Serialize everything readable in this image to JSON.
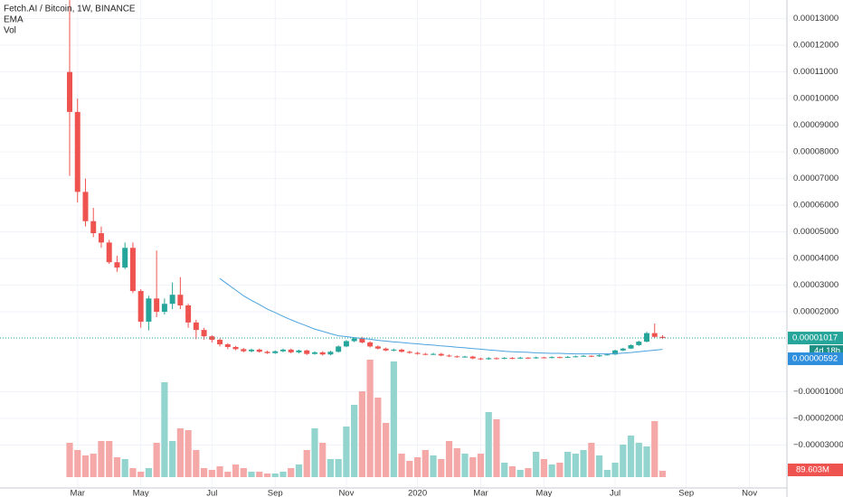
{
  "chart_data": {
    "type": "candlestick",
    "title": "Fetch.AI / Bitcoin, 1W, BINANCE",
    "categories": [
      null,
      "Mar",
      null,
      null,
      null,
      null,
      null,
      null,
      null,
      "May",
      null,
      null,
      null,
      null,
      null,
      null,
      null,
      null,
      "Jul",
      null,
      null,
      null,
      null,
      null,
      null,
      null,
      "Sep",
      null,
      null,
      null,
      null,
      null,
      null,
      null,
      null,
      "Nov",
      null,
      null,
      null,
      null,
      null,
      null,
      null,
      null,
      "2020",
      null,
      null,
      null,
      null,
      null,
      null,
      null,
      "Mar",
      null,
      null,
      null,
      null,
      null,
      null,
      null,
      "May",
      null,
      null,
      null,
      null,
      null,
      null,
      null,
      null,
      "Jul",
      null,
      null,
      null,
      null,
      null,
      null,
      null,
      null,
      "Sep",
      null,
      null,
      null,
      null,
      null,
      null,
      null,
      "Nov",
      null,
      null,
      null,
      null
    ],
    "open": [
      0.00011,
      9.5e-05,
      6.5e-05,
      5.4e-05,
      4.95e-05,
      4.6e-05,
      3.86e-05,
      3.66e-05,
      4.4e-05,
      2.78e-05,
      1.63e-05,
      2.5e-05,
      2e-05,
      2.3e-05,
      2.64e-05,
      2.24e-05,
      1.6e-05,
      1.32e-05,
      1.08e-05,
      9.5e-06,
      7.8e-06,
      6.8e-06,
      6e-06,
      5.2e-06,
      5.8e-06,
      5e-06,
      4.5e-06,
      5.2e-06,
      5.8e-06,
      4.8e-06,
      5.5e-06,
      4.2e-06,
      4.8e-06,
      4e-06,
      5e-06,
      7e-06,
      9e-06,
      1e-05,
      8.5e-06,
      7e-06,
      6.2e-06,
      5.5e-06,
      5.8e-06,
      5e-06,
      4.6e-06,
      4.2e-06,
      4e-06,
      4.2e-06,
      3.6e-06,
      3.3e-06,
      3e-06,
      3.2e-06,
      2.5e-06,
      2.2e-06,
      2.6e-06,
      2.4e-06,
      2.7e-06,
      2.5e-06,
      2.8e-06,
      2.6e-06,
      2.9e-06,
      2.7e-06,
      3e-06,
      2.8e-06,
      3.1e-06,
      3.3e-06,
      3.5e-06,
      3.3e-06,
      3.7e-06,
      4e-06,
      5.5e-06,
      6.2e-06,
      7.5e-06,
      8.8e-06,
      1.2e-05,
      1.06e-05,
      null,
      null,
      null,
      null,
      null,
      null,
      null,
      null,
      null,
      null,
      null,
      null,
      null,
      null,
      null
    ],
    "high": [
      0.000137,
      0.0001,
      7e-05,
      5.9e-05,
      5.2e-05,
      4.7e-05,
      4.1e-05,
      4.6e-05,
      4.6e-05,
      2.85e-05,
      2.6e-05,
      4.3e-05,
      2.5e-05,
      3.1e-05,
      3.3e-05,
      2.3e-05,
      1.7e-05,
      1.4e-05,
      1.12e-05,
      1e-05,
      8.2e-06,
      7.2e-06,
      6.4e-06,
      6.2e-06,
      6.2e-06,
      5.4e-06,
      5.5e-06,
      6.2e-06,
      6.2e-06,
      5.8e-06,
      5.8e-06,
      5.2e-06,
      5.2e-06,
      5.4e-06,
      7.4e-06,
      9.4e-06,
      1.04e-05,
      1.06e-05,
      9e-06,
      7.4e-06,
      6.6e-06,
      6.2e-06,
      6.2e-06,
      5.4e-06,
      5e-06,
      4.6e-06,
      4.6e-06,
      4.6e-06,
      4e-06,
      3.6e-06,
      3.5e-06,
      3.5e-06,
      2.8e-06,
      3e-06,
      2.9e-06,
      3e-06,
      3e-06,
      3.1e-06,
      3e-06,
      3.2e-06,
      3.1e-06,
      3.3e-06,
      3.2e-06,
      3.4e-06,
      3.6e-06,
      3.8e-06,
      3.7e-06,
      4e-06,
      4.4e-06,
      5.8e-06,
      6.5e-06,
      7.8e-06,
      9.2e-06,
      1.25e-05,
      1.56e-05,
      1.12e-05,
      null,
      null,
      null,
      null,
      null,
      null,
      null,
      null,
      null,
      null,
      null,
      null,
      null,
      null,
      null
    ],
    "low": [
      7.1e-05,
      6.1e-05,
      5.2e-05,
      4.8e-05,
      4.4e-05,
      3.8e-05,
      3.5e-05,
      3.6e-05,
      2.7e-05,
      1.4e-05,
      1.3e-05,
      1.8e-05,
      1.9e-05,
      2.1e-05,
      2.1e-05,
      1.4e-05,
      9.7e-06,
      9.5e-06,
      8.5e-06,
      7e-06,
      6e-06,
      5.6e-06,
      4.8e-06,
      4.8e-06,
      4.7e-06,
      4.2e-06,
      4.2e-06,
      4.8e-06,
      4.4e-06,
      4.4e-06,
      3.8e-06,
      3.9e-06,
      3.6e-06,
      3.7e-06,
      4.7e-06,
      6.7e-06,
      8.6e-06,
      8.2e-06,
      6.6e-06,
      5.9e-06,
      5.2e-06,
      5.2e-06,
      4.7e-06,
      4.3e-06,
      3.9e-06,
      3.7e-06,
      3.8e-06,
      3.3e-06,
      3e-06,
      2.8e-06,
      2.8e-06,
      2.2e-06,
      1.9e-06,
      2e-06,
      2.1e-06,
      2.2e-06,
      2.2e-06,
      2.3e-06,
      2.3e-06,
      2.4e-06,
      2.5e-06,
      2.5e-06,
      2.6e-06,
      2.7e-06,
      2.9e-06,
      3.1e-06,
      3e-06,
      3.1e-06,
      3.6e-06,
      3.8e-06,
      5.2e-06,
      6e-06,
      7.2e-06,
      8.5e-06,
      1.02e-05,
      9.8e-06,
      null,
      null,
      null,
      null,
      null,
      null,
      null,
      null,
      null,
      null,
      null,
      null,
      null,
      null,
      null
    ],
    "close": [
      9.5e-05,
      6.5e-05,
      5.4e-05,
      4.95e-05,
      4.6e-05,
      3.86e-05,
      3.66e-05,
      4.4e-05,
      2.78e-05,
      1.63e-05,
      2.5e-05,
      2e-05,
      2.3e-05,
      2.64e-05,
      2.24e-05,
      1.6e-05,
      1.32e-05,
      1.08e-05,
      9.5e-06,
      7.8e-06,
      6.8e-06,
      6e-06,
      5.2e-06,
      5.8e-06,
      5e-06,
      4.5e-06,
      5.2e-06,
      5.8e-06,
      4.8e-06,
      5.5e-06,
      4.2e-06,
      4.8e-06,
      4e-06,
      5e-06,
      7e-06,
      9e-06,
      1e-05,
      8.5e-06,
      7e-06,
      6.2e-06,
      5.5e-06,
      5.8e-06,
      5e-06,
      4.6e-06,
      4.2e-06,
      4e-06,
      4.2e-06,
      3.6e-06,
      3.3e-06,
      3e-06,
      3.2e-06,
      2.5e-06,
      2.2e-06,
      2.6e-06,
      2.4e-06,
      2.7e-06,
      2.5e-06,
      2.8e-06,
      2.6e-06,
      2.9e-06,
      2.7e-06,
      3e-06,
      2.8e-06,
      3.1e-06,
      3.3e-06,
      3.5e-06,
      3.3e-06,
      3.7e-06,
      4e-06,
      5.5e-06,
      6.2e-06,
      7.5e-06,
      8.8e-06,
      1.2e-05,
      1.06e-05,
      1.017e-05,
      null,
      null,
      null,
      null,
      null,
      null,
      null,
      null,
      null,
      null,
      null,
      null,
      null,
      null,
      null
    ],
    "up_color": "#26a69a",
    "down_color": "#ef5350",
    "ema": {
      "name": "EMA",
      "color": "#4aa3df",
      "values": [
        null,
        null,
        null,
        null,
        null,
        null,
        null,
        null,
        null,
        null,
        null,
        null,
        null,
        null,
        null,
        null,
        null,
        null,
        null,
        3.25e-05,
        3.03e-05,
        2.82e-05,
        2.6e-05,
        2.43e-05,
        2.27e-05,
        2.1e-05,
        1.97e-05,
        1.83e-05,
        1.7e-05,
        1.58e-05,
        1.47e-05,
        1.35e-05,
        1.27e-05,
        1.18e-05,
        1.1e-05,
        1.07e-05,
        1.03e-05,
        1e-05,
        9.7e-06,
        9.3e-06,
        9e-06,
        8.7e-06,
        8.5e-06,
        8.2e-06,
        8e-06,
        7.7e-06,
        7.5e-06,
        7.2e-06,
        7e-06,
        6.7e-06,
        6.5e-06,
        6.2e-06,
        6e-06,
        5.7e-06,
        5.5e-06,
        5.2e-06,
        5e-06,
        4.9e-06,
        4.8e-06,
        4.6e-06,
        4.5e-06,
        4.4e-06,
        4.4e-06,
        4.3e-06,
        4.2e-06,
        4.2e-06,
        4.2e-06,
        4.2e-06,
        4.2e-06,
        4.3e-06,
        4.5e-06,
        4.7e-06,
        5e-06,
        5.3e-06,
        5.6e-06,
        5.92e-06,
        null,
        null,
        null,
        null,
        null,
        null,
        null,
        null,
        null,
        null,
        null,
        null,
        null,
        null,
        null
      ],
      "last_label": "0.00000592"
    },
    "volume": {
      "name": "Vol",
      "up_color": "#93d5ce",
      "down_color": "#f5a8a8",
      "values": [
        486.4,
        384,
        307.2,
        332.8,
        512,
        512,
        281.6,
        256,
        128,
        76.8,
        128,
        486.4,
        1344,
        512,
        691.2,
        665.6,
        384,
        128,
        102.4,
        153.6,
        76.8,
        179.2,
        128,
        76.8,
        76.8,
        51.2,
        51.2,
        76.8,
        128,
        179.2,
        384,
        691.2,
        486.4,
        256,
        256,
        716.8,
        1024,
        1216,
        1664,
        1126.4,
        768,
        1638.4,
        332.8,
        230.4,
        281.6,
        384,
        307.2,
        256,
        512,
        409.6,
        332.8,
        281.6,
        332.8,
        921.6,
        819.2,
        204.8,
        153.6,
        102.4,
        128,
        358.4,
        256,
        179.2,
        204.8,
        358.4,
        332.8,
        384,
        486.4,
        307.2,
        102.4,
        204.8,
        460.8,
        588.8,
        486.4,
        435.2,
        793.6,
        89.603,
        null,
        null,
        null,
        null,
        null,
        null,
        null,
        null,
        null,
        null,
        null,
        null,
        null,
        null,
        null
      ],
      "value_labels": [
        null,
        null,
        null,
        null,
        null,
        null,
        null,
        null,
        null,
        null,
        null,
        null,
        null,
        null,
        null,
        null,
        null,
        null,
        null,
        null,
        null,
        null,
        null,
        null,
        null,
        null,
        null,
        null,
        null,
        null,
        null,
        null,
        null,
        null,
        null,
        null,
        null,
        null,
        null,
        null,
        null,
        null,
        null,
        null,
        null,
        null,
        null,
        null,
        null,
        null,
        null,
        null,
        null,
        null,
        null,
        null,
        null,
        null,
        null,
        null,
        null,
        null,
        null,
        null,
        null,
        null,
        null,
        null,
        null,
        null,
        null,
        null,
        null,
        null,
        null,
        "89.603M",
        null,
        null,
        null,
        null,
        null,
        null,
        null,
        null,
        null,
        null,
        null,
        null,
        null,
        null,
        null
      ]
    },
    "last_price_label": "0.00001017",
    "countdown": "4d 18h",
    "ylim": [
      -4.61e-05,
      0.000137
    ],
    "yticks": [
      {
        "value": 0.00013,
        "label": "0.00013000"
      },
      {
        "value": 0.00012,
        "label": "0.00012000"
      },
      {
        "value": 0.00011,
        "label": "0.00011000"
      },
      {
        "value": 0.0001,
        "label": "0.00010000"
      },
      {
        "value": 9e-05,
        "label": "0.00009000"
      },
      {
        "value": 8e-05,
        "label": "0.00008000"
      },
      {
        "value": 7e-05,
        "label": "0.00007000"
      },
      {
        "value": 6e-05,
        "label": "0.00006000"
      },
      {
        "value": 5e-05,
        "label": "0.00005000"
      },
      {
        "value": 4e-05,
        "label": "0.00004000"
      },
      {
        "value": 3e-05,
        "label": "0.00003000"
      },
      {
        "value": 2e-05,
        "label": "0.00002000"
      },
      {
        "value": -1e-05,
        "label": "−0.00001000"
      },
      {
        "value": -2e-05,
        "label": "−0.00002000"
      },
      {
        "value": -3e-05,
        "label": "−0.00003000"
      }
    ],
    "grid": true
  }
}
